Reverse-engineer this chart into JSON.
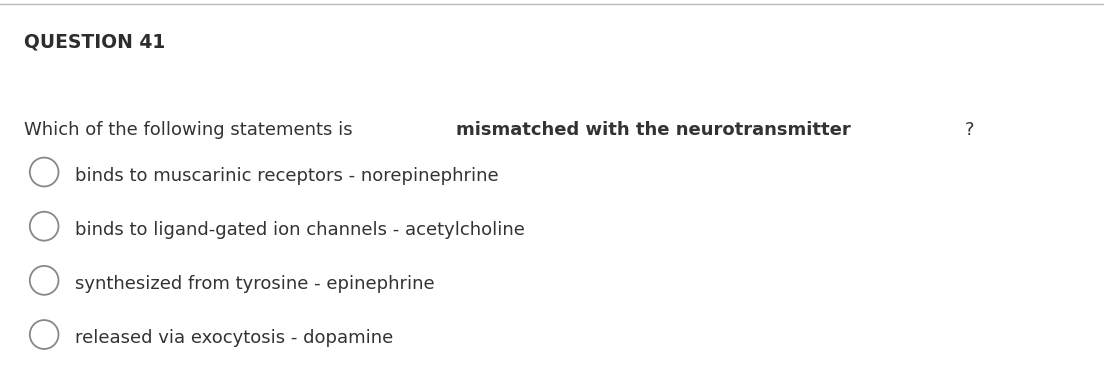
{
  "title": "QUESTION 41",
  "question_prefix": "Which of the following statements is ",
  "question_bold": "mismatched with the neurotransmitter",
  "question_suffix": "?",
  "options": [
    "binds to muscarinic receptors - norepinephrine",
    "binds to ligand-gated ion channels - acetylcholine",
    "synthesized from tyrosine - epinephrine",
    "released via exocytosis - dopamine"
  ],
  "background_color": "#ffffff",
  "title_color": "#2d2d2d",
  "text_color": "#333333",
  "top_line_color": "#bbbbbb",
  "title_fontsize": 13.5,
  "question_fontsize": 13,
  "option_fontsize": 13,
  "circle_color": "#888888",
  "fig_width": 11.04,
  "fig_height": 3.66,
  "dpi": 100
}
